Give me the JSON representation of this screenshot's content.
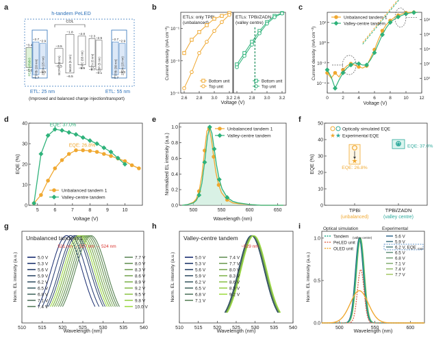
{
  "panels": {
    "a": {
      "letter": "a",
      "title": "h-tandem PeLED",
      "col_label": "COL",
      "etl_left": "ETL: 25 nm",
      "etl_right": "ETL: 55 nm",
      "caption": "(Improved and balanced charge injection/transport)",
      "ito": "ITO",
      "ito_e": "−4.8",
      "lif": "LiF/Al",
      "lif_e": "−4.1",
      "hil": "Buf-HIL (40 nm)",
      "hil_e": "−5.95",
      "layers": [
        {
          "label": "PEA:FAPbBr3",
          "top": "−3.4",
          "bot": "−5.8"
        },
        {
          "label": "TPBi (20 nm)",
          "top": "−2.7",
          "bot": "−6.7"
        },
        {
          "label": "ZADN (25 nm)",
          "top": "−2.9",
          "bot": "−6.0"
        },
        {
          "label": "BCPAl (20 nm)",
          "top": "−3.5",
          "bot": "−5.3"
        },
        {
          "label": "MoO3 (5 nm)",
          "top": "−1.8",
          "bot": "−6.5"
        },
        {
          "label": "TAPC (65 nm)",
          "top": "−2.0",
          "bot": "−5.5"
        },
        {
          "label": "TCTA (5 nm)",
          "top": "−2.3",
          "bot": "−5.7"
        },
        {
          "label": "CBP (5 nm)",
          "top": "−2.5",
          "bot": "−6.1"
        },
        {
          "label": "TPBi (30 nm)",
          "top": "−2.7",
          "bot": "−6.7"
        },
        {
          "label": "ZADN (25 nm)",
          "top": "−2.9",
          "bot": "−6.0"
        }
      ]
    },
    "b": {
      "letter": "b",
      "left_title": [
        "ETLs: only TPBi",
        "(unbalanced)"
      ],
      "right_title": [
        "ETLs: TPBi/ZADN",
        "(valley centre)"
      ],
      "ylabel": "Current density (mA cm⁻²)",
      "xlabel": "Voltage (V)",
      "legend": [
        "Bottom unit",
        "Top unit"
      ]
    },
    "c": {
      "letter": "c",
      "legend": [
        "Unbalanced tandem 1",
        "Valley-centre tandem"
      ],
      "ylabel": "Current density (mA cm⁻²)",
      "xlabel": "Voltage (V)"
    },
    "d": {
      "letter": "d",
      "ylabel": "EQE (%)",
      "xlabel": "Voltage (V)",
      "ann_green": "EQE: 37.0%",
      "ann_orange": "EQE: 26.8%",
      "legend": [
        "Unbalanced tandem 1",
        "Valley-centre tandem"
      ]
    },
    "e": {
      "letter": "e",
      "ylabel": "Normalized EL intensity (a.u.)",
      "xlabel": "Wavelength (nm)",
      "legend": [
        "Unbalanced tandem 1",
        "Valley-centre tandem"
      ]
    },
    "f": {
      "letter": "f",
      "ylabel": "EQE (%)",
      "legend": [
        "Optically simulated EQE",
        "Experimental EQE"
      ],
      "ann_green": "EQE: 37.0%",
      "ann_orange": "EQE: 26.8%",
      "cat1": "TPBi",
      "cat1_sub": "(unbalanced)",
      "cat2": "TPBi/ZADN",
      "cat2_sub": "(valley centre)"
    },
    "g": {
      "letter": "g",
      "title": "Unbalanced tandem 1",
      "annot": "521 nm → 527 nm → 524 nm",
      "ylabel": "Norm. EL intensity (a.u.)",
      "xlabel": "Wavelength (nm)",
      "voltages": [
        "5.0 V",
        "5.3 V",
        "5.6 V",
        "5.9 V",
        "6.2 V",
        "6.5 V",
        "6.8 V",
        "7.1 V",
        "7.4 V",
        "7.7 V",
        "8.0 V",
        "8.3 V",
        "8.6 V",
        "8.9 V",
        "9.2 V",
        "9.5 V",
        "9.8 V",
        "10.0 V"
      ]
    },
    "h": {
      "letter": "h",
      "title": "Valley-centre tandem",
      "annot": "~529 nm",
      "ylabel": "Norm. EL intensity (a.u.)",
      "xlabel": "Wavelength (nm)",
      "voltages": [
        "5.0 V",
        "5.3 V",
        "5.6 V",
        "5.9 V",
        "6.2 V",
        "6.5 V",
        "6.8 V",
        "7.1 V",
        "7.4 V",
        "7.7 V",
        "8.0 V",
        "8.3 V",
        "8.6 V",
        "8.9 V",
        "9.2 V"
      ]
    },
    "i": {
      "letter": "i",
      "header_left": "Optical simulation",
      "header_right": "Experimental",
      "sim_legend": [
        "Tandem",
        "PeLED unit",
        "OLED unit"
      ],
      "sim_sub": "(valley centre)",
      "exp_legend": [
        "5.6 V",
        "5.9 V",
        "6.2 V, EQE",
        "6.5 V",
        "6.8 V",
        "7.1 V",
        "7.4 V",
        "7.7 V"
      ],
      "exp_sub": "max",
      "ylabel": "Norm. EL intensity (a.u.)",
      "xlabel": "Wavelength (nm)"
    }
  },
  "chart_data": [
    {
      "panel": "b",
      "type": "line",
      "subplots": [
        {
          "series": [
            {
              "name": "Bottom unit",
              "marker": "square",
              "x": [
                2.6,
                2.7,
                2.8,
                2.9,
                3.0,
                3.1,
                3.2
              ],
              "y": [
                0.003,
                0.02,
                0.06,
                0.16,
                0.4,
                0.6,
                0.9
              ]
            },
            {
              "name": "Top unit",
              "marker": "circle",
              "x": [
                2.6,
                2.7,
                2.8,
                2.9,
                3.0,
                3.1,
                3.2
              ],
              "y": [
                2e-05,
                0.0002,
                0.003,
                0.015,
                0.07,
                0.25,
                0.7
              ]
            }
          ]
        },
        {
          "series": [
            {
              "name": "Bottom unit",
              "marker": "square",
              "x": [
                2.6,
                2.7,
                2.8,
                2.9,
                3.0,
                3.1,
                3.2
              ],
              "y": [
                0.0006,
                0.003,
                0.015,
                0.07,
                0.25,
                0.6,
                0.9
              ]
            },
            {
              "name": "Top unit",
              "marker": "circle",
              "x": [
                2.6,
                2.7,
                2.8,
                2.9,
                3.0,
                3.1,
                3.2
              ],
              "y": [
                0.0004,
                0.002,
                0.01,
                0.05,
                0.2,
                0.5,
                0.85
              ]
            }
          ]
        }
      ],
      "xlim": [
        2.6,
        3.2
      ],
      "xticks": [
        2.6,
        2.8,
        3.0,
        3.2
      ],
      "xticks2": [
        2.6,
        2.8,
        3.0,
        3.2
      ],
      "yscale": "log",
      "ylim": [
        1e-05,
        1
      ],
      "yticks": [
        1e-05,
        0.001,
        0.1
      ],
      "yticklabels": [
        "10⁻⁵",
        "10⁻³",
        "10⁻¹"
      ],
      "vline": 2.84
    },
    {
      "panel": "c",
      "type": "line",
      "series": [
        {
          "name": "Unbalanced tandem 1",
          "x": [
            0,
            0.5,
            1,
            1.5,
            2,
            2.5,
            3,
            3.5,
            4,
            4.5,
            5,
            5.5,
            6,
            6.5,
            7,
            7.5,
            8,
            8.5,
            9,
            9.5,
            10,
            10.5,
            11,
            11.5
          ],
          "y": [
            0.001,
            0.0003,
            0.001,
            0.0004,
            0.002,
            0.005,
            0.008,
            0.006,
            0.004,
            0.003,
            0.005,
            0.03,
            0.2,
            2,
            15,
            60,
            150,
            300,
            500,
            700,
            900,
            1000,
            1000,
            1000
          ]
        },
        {
          "name": "Valley-centre tandem",
          "x": [
            0,
            0.5,
            1,
            1.5,
            2,
            2.5,
            3,
            3.5,
            4,
            4.5,
            5,
            5.5,
            6,
            6.5,
            7,
            7.5,
            8,
            8.5,
            9,
            9.5,
            10,
            10.5,
            11,
            11.5
          ],
          "y": [
            0.002,
            0.0004,
            3e-05,
            0.0002,
            0.001,
            0.003,
            0.006,
            0.01,
            0.008,
            0.006,
            0.006,
            0.02,
            0.1,
            0.8,
            6,
            30,
            100,
            200,
            350,
            500,
            700,
            850,
            950,
            1000
          ]
        }
      ],
      "xlim": [
        0,
        12
      ],
      "xticks": [
        0,
        2,
        4,
        6,
        8,
        10,
        12
      ],
      "ylim": [
        1e-05,
        1000
      ],
      "yticks": [
        0.0001,
        0.01,
        1,
        100
      ],
      "yticklabels": [
        "10⁻⁴",
        "10⁻²",
        "10⁰",
        "10²"
      ],
      "y2ticks": [
        1,
        100,
        10000,
        1000000,
        100000000
      ],
      "y2ticklabels": [
        "10⁰",
        "10²",
        "10⁴",
        "10⁶",
        "10⁸"
      ]
    },
    {
      "panel": "d",
      "type": "line",
      "series": [
        {
          "name": "Unbalanced tandem 1",
          "x": [
            4.8,
            5.2,
            5.6,
            6.0,
            6.4,
            6.8,
            7.2,
            7.6,
            8.0,
            8.4,
            8.8,
            9.2,
            9.6,
            10.0,
            10.4,
            10.8
          ],
          "y": [
            1,
            5,
            12,
            18,
            22,
            25,
            26.8,
            26.8,
            26.5,
            26,
            25,
            24,
            22.8,
            21.5,
            19.5,
            18
          ]
        },
        {
          "name": "Valley-centre tandem",
          "x": [
            4.8,
            5.2,
            5.6,
            6.0,
            6.4,
            6.8,
            7.2,
            7.6,
            8.0,
            8.4,
            8.8,
            9.2,
            9.6,
            10.0
          ],
          "y": [
            1,
            25,
            34,
            37,
            36.5,
            35.5,
            34.5,
            33,
            31.5,
            30,
            28,
            26,
            23,
            20
          ]
        }
      ],
      "xlim": [
        4.5,
        11
      ],
      "xticks": [
        5,
        6,
        7,
        8,
        9,
        10
      ],
      "ylim": [
        0,
        40
      ],
      "yticks": [
        0,
        10,
        20,
        30,
        40
      ]
    },
    {
      "panel": "e",
      "type": "line",
      "series": [
        {
          "name": "Unbalanced tandem 1",
          "x": [
            480,
            490,
            500,
            505,
            510,
            515,
            520,
            524,
            528,
            532,
            536,
            540,
            545,
            550,
            560,
            570,
            580,
            600,
            620,
            640,
            660
          ],
          "y": [
            0,
            0.01,
            0.04,
            0.08,
            0.18,
            0.38,
            0.7,
            0.95,
            0.98,
            0.85,
            0.62,
            0.42,
            0.26,
            0.16,
            0.07,
            0.03,
            0.02,
            0.01,
            0,
            0,
            0
          ]
        },
        {
          "name": "Valley-centre tandem",
          "x": [
            480,
            490,
            500,
            505,
            510,
            515,
            520,
            525,
            529,
            533,
            537,
            541,
            546,
            551,
            560,
            570,
            580,
            600,
            620,
            640,
            660
          ],
          "y": [
            0,
            0.01,
            0.03,
            0.06,
            0.13,
            0.28,
            0.55,
            0.88,
            1.0,
            0.92,
            0.72,
            0.52,
            0.33,
            0.21,
            0.1,
            0.05,
            0.03,
            0.01,
            0,
            0,
            0
          ]
        }
      ],
      "xlim": [
        475,
        665
      ],
      "xticks": [
        500,
        550,
        600,
        650
      ],
      "ylim": [
        0,
        1.05
      ],
      "yticks": [
        0,
        0.2,
        0.4,
        0.6,
        0.8,
        1.0
      ]
    },
    {
      "panel": "f",
      "type": "scatter",
      "categories": [
        "TPBi",
        "TPBi/ZADN"
      ],
      "series": [
        {
          "name": "Optically simulated EQE",
          "values": [
            35,
            37.5
          ]
        },
        {
          "name": "Experimental EQE",
          "values": [
            26.8,
            37.0
          ]
        }
      ],
      "ylim": [
        0,
        50
      ],
      "yticks": [
        0,
        10,
        20,
        30,
        40,
        50
      ]
    },
    {
      "panel": "g",
      "type": "line",
      "peaks": [
        521,
        522,
        523,
        523.5,
        524.5,
        525,
        526,
        526.5,
        527,
        527,
        526.5,
        526,
        525.5,
        525,
        524.5,
        524.5,
        524,
        524
      ],
      "fwhm": 9,
      "xlim": [
        510,
        540
      ],
      "xticks": [
        510,
        515,
        520,
        525,
        530,
        535,
        540
      ],
      "ylim": [
        0,
        1.05
      ]
    },
    {
      "panel": "h",
      "type": "line",
      "peaks": [
        529,
        529,
        529,
        529,
        529.2,
        529.2,
        529.3,
        529.3,
        529.4,
        529.4,
        529.5,
        529.5,
        529.6,
        529.6,
        529.7
      ],
      "fwhm": 8,
      "xlim": [
        510,
        540
      ],
      "xticks": [
        510,
        515,
        520,
        525,
        530,
        535,
        540
      ],
      "ylim": [
        0,
        1.05
      ]
    },
    {
      "panel": "i",
      "type": "line",
      "simulated": [
        {
          "name": "Tandem",
          "peak": 1.0,
          "center": 529,
          "width": 13
        },
        {
          "name": "PeLED unit",
          "peak": 0.63,
          "center": 530,
          "width": 11
        },
        {
          "name": "OLED unit",
          "peak": 0.38,
          "center": 528,
          "width": 30
        }
      ],
      "experimental_peak": 1.0,
      "experimental_center": 529,
      "experimental_width": 13,
      "xlim": [
        475,
        620
      ],
      "xticks": [
        500,
        550,
        600
      ],
      "ylim": [
        0,
        1.08
      ],
      "yticks": [
        0,
        0.5,
        1.0
      ]
    }
  ]
}
